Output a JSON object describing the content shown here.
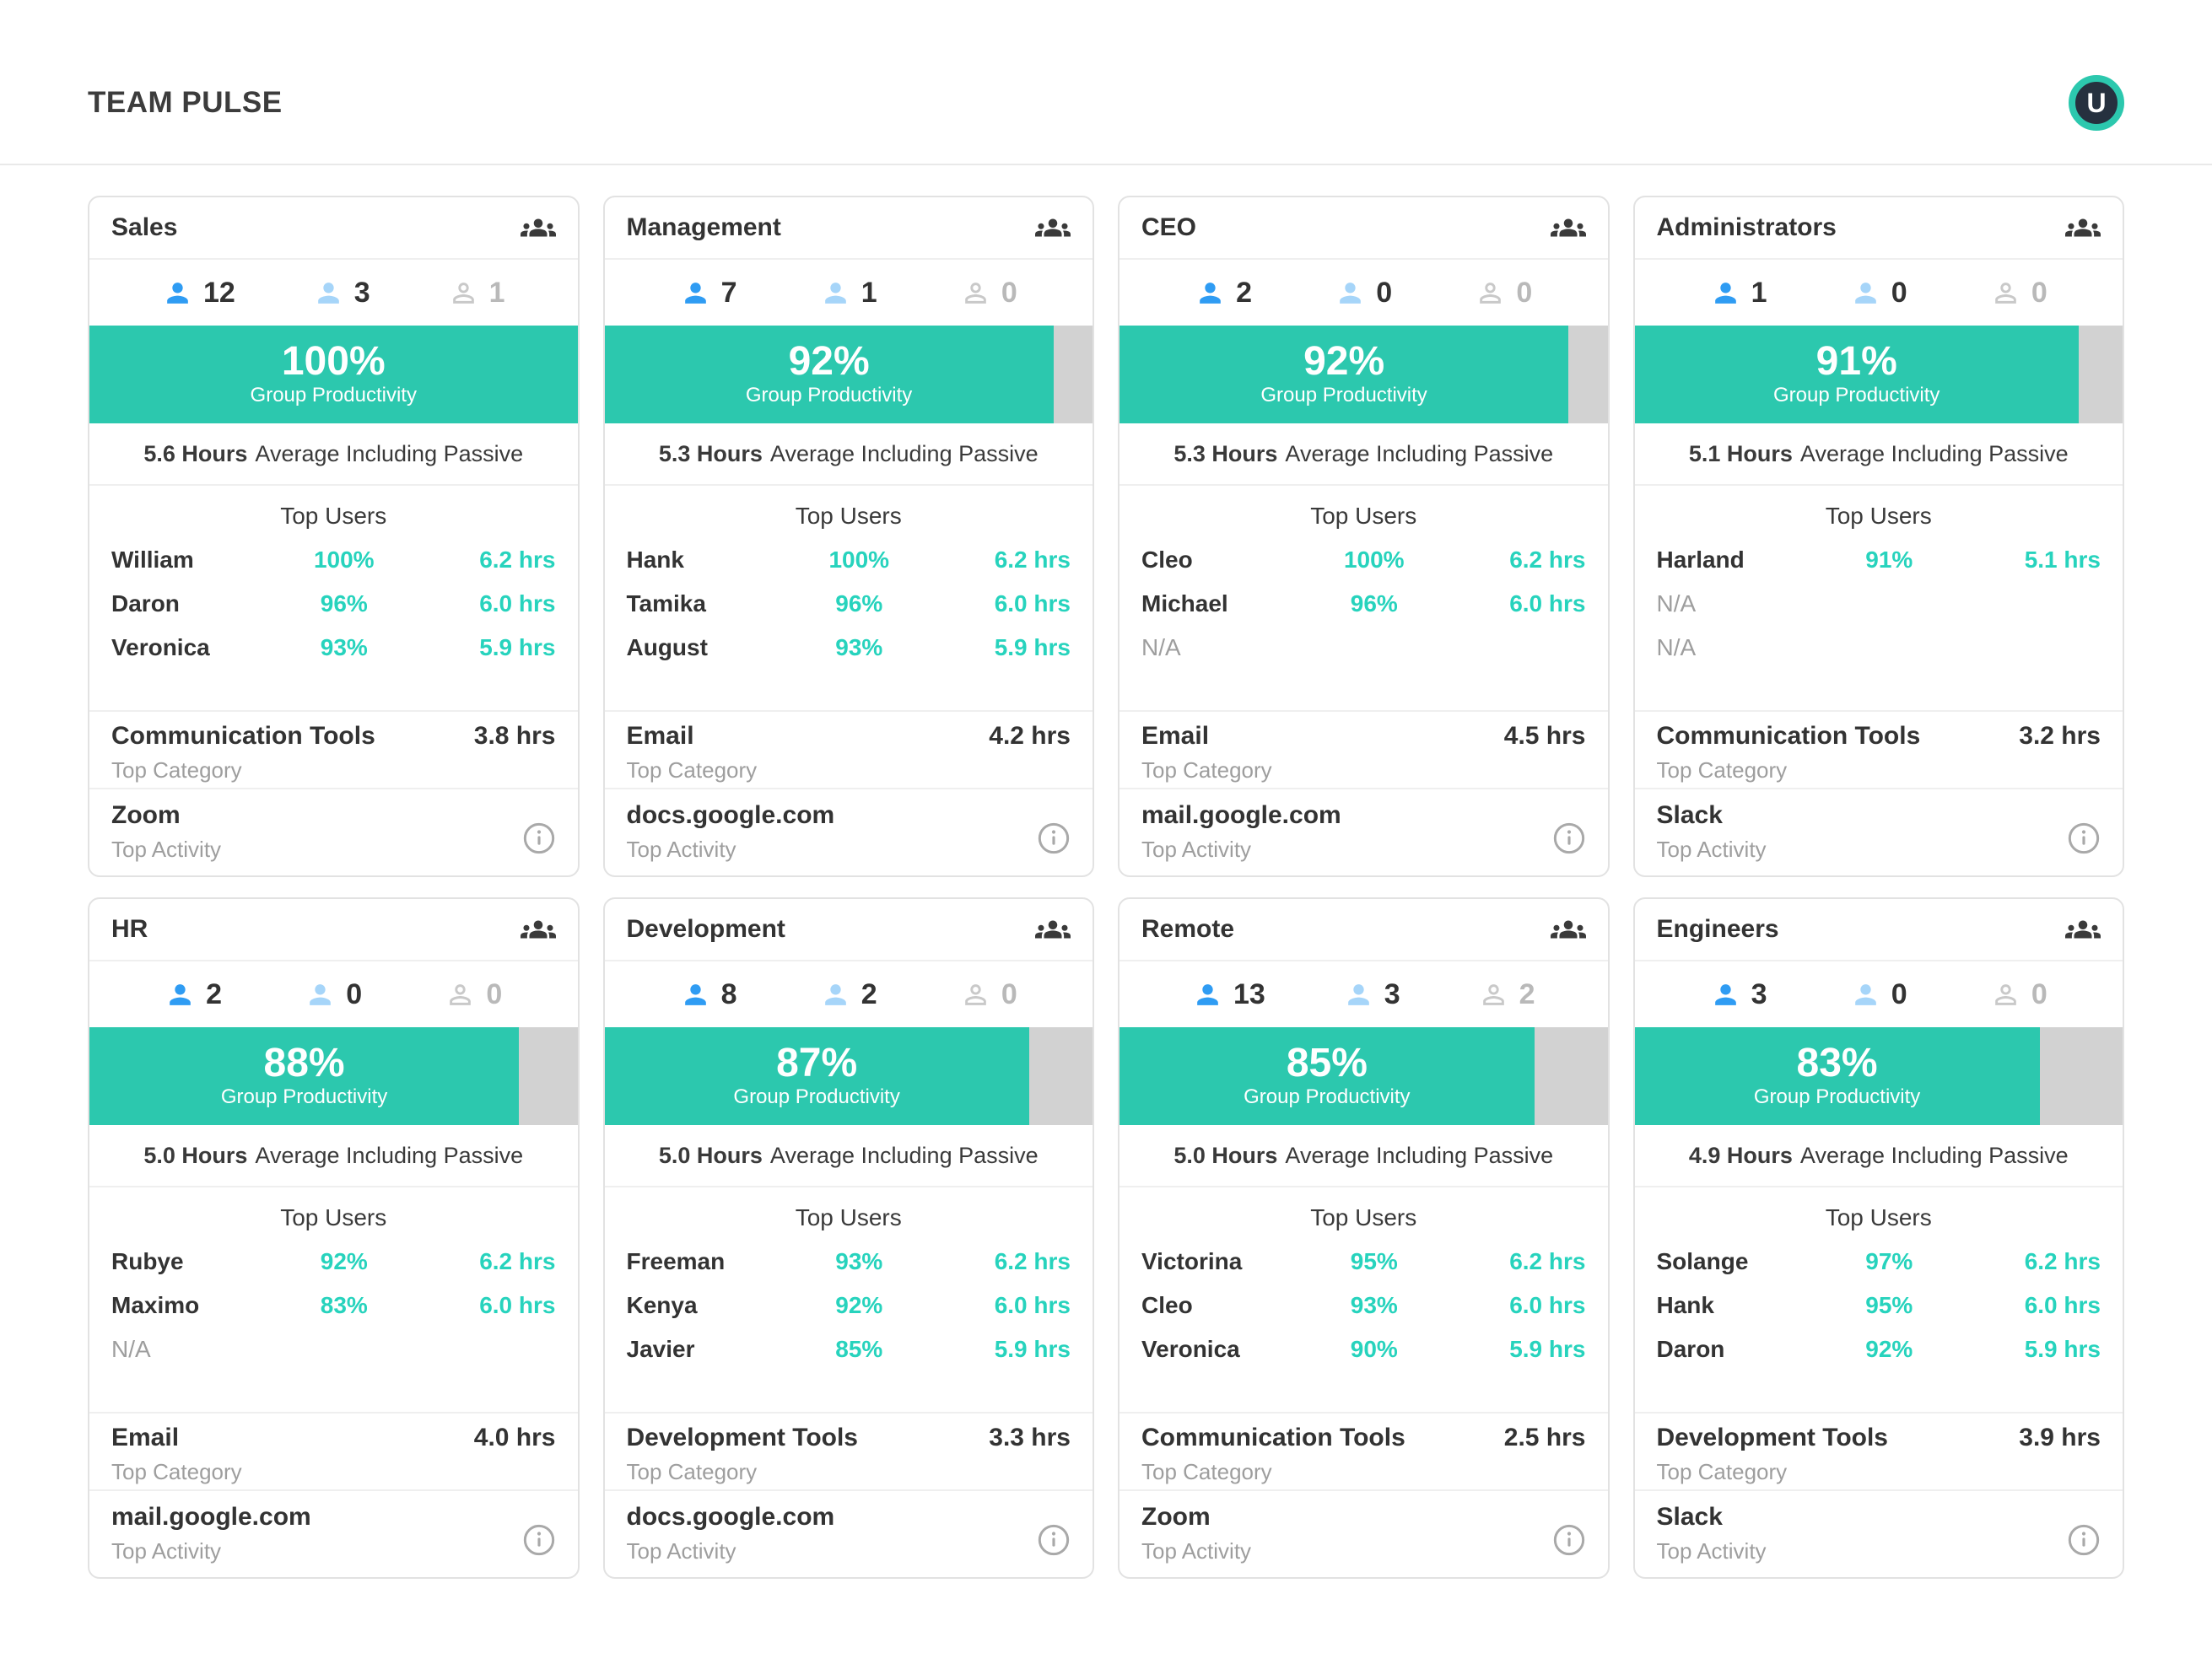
{
  "header": {
    "title": "TEAM PULSE",
    "avatar_letter": "U"
  },
  "labels": {
    "group_productivity": "Group Productivity",
    "average_suffix": "Average Including Passive",
    "top_users": "Top Users",
    "top_category": "Top Category",
    "top_activity": "Top Activity"
  },
  "icons": {
    "team_header": "groups-icon",
    "active_user": "person-icon",
    "idle_user": "person-icon",
    "offline_user": "person-outline-icon",
    "activity_info": "info-icon"
  },
  "colors": {
    "accent_teal": "#2cc8ae",
    "teal_text": "#27d3bd",
    "bar_track_gray": "#d2d2d2",
    "active_blue": "#2f9cf3",
    "idle_light_blue": "#a6d5f9",
    "offline_gray": "#c9c9c9",
    "avatar_ring": "#2cc8ae",
    "avatar_bg": "#26313f"
  },
  "teams": [
    {
      "name": "Sales",
      "counts": {
        "active": "12",
        "idle": "3",
        "offline": "1"
      },
      "productivity_pct": 100,
      "productivity_label": "100%",
      "avg_hours": "5.6 Hours",
      "top_users": [
        {
          "name": "William",
          "pct": "100%",
          "hrs": "6.2 hrs"
        },
        {
          "name": "Daron",
          "pct": "96%",
          "hrs": "6.0 hrs"
        },
        {
          "name": "Veronica",
          "pct": "93%",
          "hrs": "5.9 hrs"
        }
      ],
      "top_category": {
        "name": "Communication Tools",
        "hrs": "3.8 hrs"
      },
      "top_activity": "Zoom"
    },
    {
      "name": "Management",
      "counts": {
        "active": "7",
        "idle": "1",
        "offline": "0"
      },
      "productivity_pct": 92,
      "productivity_label": "92%",
      "avg_hours": "5.3 Hours",
      "top_users": [
        {
          "name": "Hank",
          "pct": "100%",
          "hrs": "6.2 hrs"
        },
        {
          "name": "Tamika",
          "pct": "96%",
          "hrs": "6.0 hrs"
        },
        {
          "name": "August",
          "pct": "93%",
          "hrs": "5.9 hrs"
        }
      ],
      "top_category": {
        "name": "Email",
        "hrs": "4.2 hrs"
      },
      "top_activity": "docs.google.com"
    },
    {
      "name": "CEO",
      "counts": {
        "active": "2",
        "idle": "0",
        "offline": "0"
      },
      "productivity_pct": 92,
      "productivity_label": "92%",
      "avg_hours": "5.3 Hours",
      "top_users": [
        {
          "name": "Cleo",
          "pct": "100%",
          "hrs": "6.2 hrs"
        },
        {
          "name": "Michael",
          "pct": "96%",
          "hrs": "6.0 hrs"
        },
        {
          "name": "N/A",
          "pct": "",
          "hrs": ""
        }
      ],
      "top_category": {
        "name": "Email",
        "hrs": "4.5 hrs"
      },
      "top_activity": "mail.google.com"
    },
    {
      "name": "Administrators",
      "counts": {
        "active": "1",
        "idle": "0",
        "offline": "0"
      },
      "productivity_pct": 91,
      "productivity_label": "91%",
      "avg_hours": "5.1 Hours",
      "top_users": [
        {
          "name": "Harland",
          "pct": "91%",
          "hrs": "5.1 hrs"
        },
        {
          "name": "N/A",
          "pct": "",
          "hrs": ""
        },
        {
          "name": "N/A",
          "pct": "",
          "hrs": ""
        }
      ],
      "top_category": {
        "name": "Communication Tools",
        "hrs": "3.2 hrs"
      },
      "top_activity": "Slack"
    },
    {
      "name": "HR",
      "counts": {
        "active": "2",
        "idle": "0",
        "offline": "0"
      },
      "productivity_pct": 88,
      "productivity_label": "88%",
      "avg_hours": "5.0 Hours",
      "top_users": [
        {
          "name": "Rubye",
          "pct": "92%",
          "hrs": "6.2 hrs"
        },
        {
          "name": "Maximo",
          "pct": "83%",
          "hrs": "6.0 hrs"
        },
        {
          "name": "N/A",
          "pct": "",
          "hrs": ""
        }
      ],
      "top_category": {
        "name": "Email",
        "hrs": "4.0 hrs"
      },
      "top_activity": "mail.google.com"
    },
    {
      "name": "Development",
      "counts": {
        "active": "8",
        "idle": "2",
        "offline": "0"
      },
      "productivity_pct": 87,
      "productivity_label": "87%",
      "avg_hours": "5.0 Hours",
      "top_users": [
        {
          "name": "Freeman",
          "pct": "93%",
          "hrs": "6.2 hrs"
        },
        {
          "name": "Kenya",
          "pct": "92%",
          "hrs": "6.0 hrs"
        },
        {
          "name": "Javier",
          "pct": "85%",
          "hrs": "5.9 hrs"
        }
      ],
      "top_category": {
        "name": "Development Tools",
        "hrs": "3.3 hrs"
      },
      "top_activity": "docs.google.com"
    },
    {
      "name": "Remote",
      "counts": {
        "active": "13",
        "idle": "3",
        "offline": "2"
      },
      "productivity_pct": 85,
      "productivity_label": "85%",
      "avg_hours": "5.0 Hours",
      "top_users": [
        {
          "name": "Victorina",
          "pct": "95%",
          "hrs": "6.2 hrs"
        },
        {
          "name": "Cleo",
          "pct": "93%",
          "hrs": "6.0 hrs"
        },
        {
          "name": "Veronica",
          "pct": "90%",
          "hrs": "5.9 hrs"
        }
      ],
      "top_category": {
        "name": "Communication Tools",
        "hrs": "2.5 hrs"
      },
      "top_activity": "Zoom"
    },
    {
      "name": "Engineers",
      "counts": {
        "active": "3",
        "idle": "0",
        "offline": "0"
      },
      "productivity_pct": 83,
      "productivity_label": "83%",
      "avg_hours": "4.9 Hours",
      "top_users": [
        {
          "name": "Solange",
          "pct": "97%",
          "hrs": "6.2 hrs"
        },
        {
          "name": "Hank",
          "pct": "95%",
          "hrs": "6.0 hrs"
        },
        {
          "name": "Daron",
          "pct": "92%",
          "hrs": "5.9 hrs"
        }
      ],
      "top_category": {
        "name": "Development Tools",
        "hrs": "3.9 hrs"
      },
      "top_activity": "Slack"
    }
  ]
}
